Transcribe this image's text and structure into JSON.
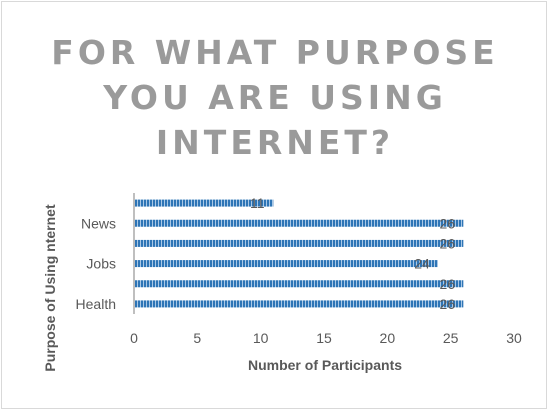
{
  "chart_data": {
    "type": "bar",
    "orientation": "horizontal",
    "title_lines": [
      "FOR WHAT PURPOSE",
      "YOU ARE USING",
      "INTERNET?"
    ],
    "xlabel": "Number of Participants",
    "ylabel": "Purpose of Using nternet",
    "categories": [
      "",
      "News",
      "",
      "Jobs",
      "",
      "Health"
    ],
    "values": [
      11,
      26,
      26,
      24,
      26,
      26
    ],
    "xlim": [
      0,
      30
    ],
    "xticks": [
      0,
      5,
      10,
      15,
      20,
      25,
      30
    ],
    "grid": false,
    "legend": "none",
    "bar_color": "#2e75b6",
    "text_color": "#595959",
    "title_color": "#9a9a9a"
  }
}
